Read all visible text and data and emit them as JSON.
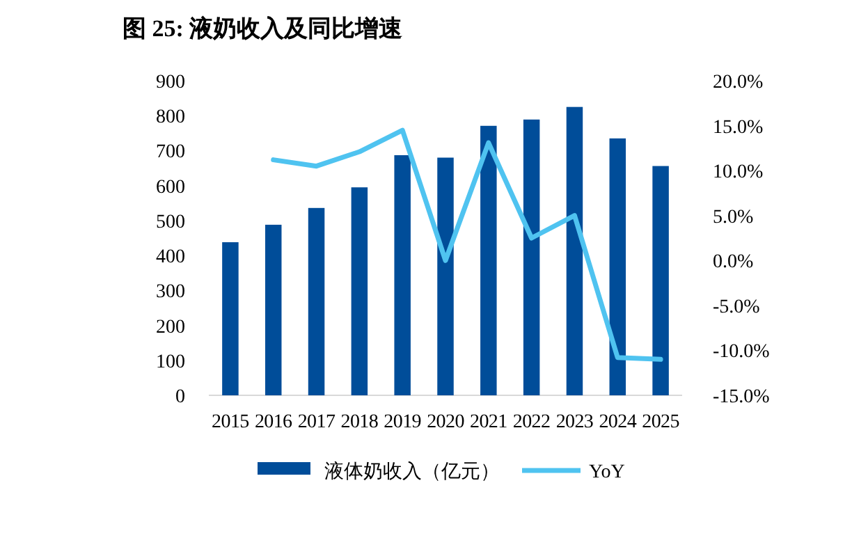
{
  "chart_data": {
    "type": "bar",
    "title": "图 25:  液奶收入及同比增速",
    "categories": [
      "2015",
      "2016",
      "2017",
      "2018",
      "2019",
      "2020",
      "2021",
      "2022",
      "2023",
      "2024",
      "2025"
    ],
    "series": [
      {
        "name": "液体奶收入（亿元）",
        "color": "#004d99",
        "values": [
          438,
          488,
          536,
          595,
          687,
          680,
          771,
          789,
          825,
          735,
          656
        ]
      },
      {
        "name": "YoY",
        "type": "line",
        "axis": "y2",
        "color": "#4fc3f0",
        "values": [
          null,
          11.2,
          10.5,
          12.1,
          14.5,
          0.0,
          13.1,
          2.5,
          5.0,
          -10.8,
          -11.0
        ]
      }
    ],
    "ylim": [
      0,
      900
    ],
    "yticks": [
      0,
      100,
      200,
      300,
      400,
      500,
      600,
      700,
      800,
      900
    ],
    "y2lim": [
      -15,
      20
    ],
    "y2ticks": [
      {
        "value": 20,
        "label": "20.0%"
      },
      {
        "value": 15,
        "label": "15.0%"
      },
      {
        "value": 10,
        "label": "10.0%"
      },
      {
        "value": 5,
        "label": "5.0%"
      },
      {
        "value": 0,
        "label": "0.0%"
      },
      {
        "value": -5,
        "label": "-5.0%"
      },
      {
        "value": -10,
        "label": "-10.0%"
      },
      {
        "value": -15,
        "label": "-15.0%"
      }
    ],
    "legend": "bottom",
    "grid": false
  }
}
